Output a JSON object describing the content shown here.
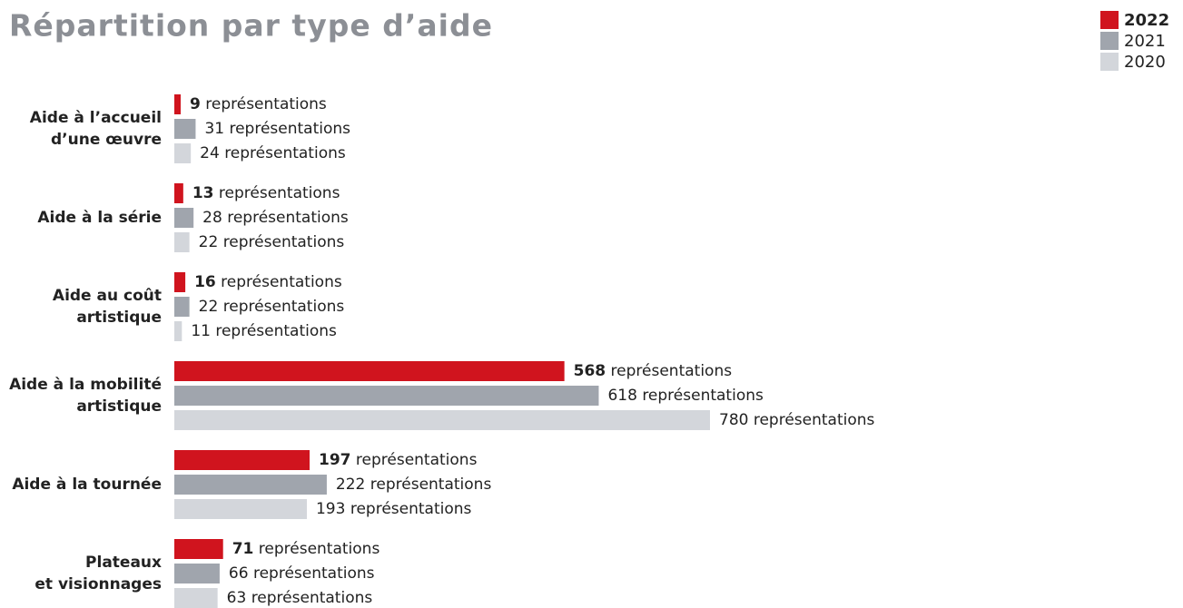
{
  "chart_data": {
    "type": "bar",
    "orientation": "horizontal",
    "title": "Répartition par type d’aide",
    "unit_label": "représentations",
    "categories": [
      [
        "Aide à l’accueil",
        "d’une œuvre"
      ],
      [
        "Aide à la série"
      ],
      [
        "Aide au coût",
        "artistique"
      ],
      [
        "Aide à la mobilité",
        "artistique"
      ],
      [
        "Aide à la tournée"
      ],
      [
        "Plateaux",
        "et visionnages"
      ]
    ],
    "series": [
      {
        "name": "2022",
        "color": "#d0141e",
        "values": [
          9,
          13,
          16,
          568,
          197,
          71
        ]
      },
      {
        "name": "2021",
        "color": "#a0a5ad",
        "values": [
          31,
          28,
          22,
          618,
          222,
          66
        ]
      },
      {
        "name": "2020",
        "color": "#d3d6db",
        "values": [
          24,
          22,
          11,
          780,
          193,
          63
        ]
      }
    ],
    "legend": "top-right"
  }
}
